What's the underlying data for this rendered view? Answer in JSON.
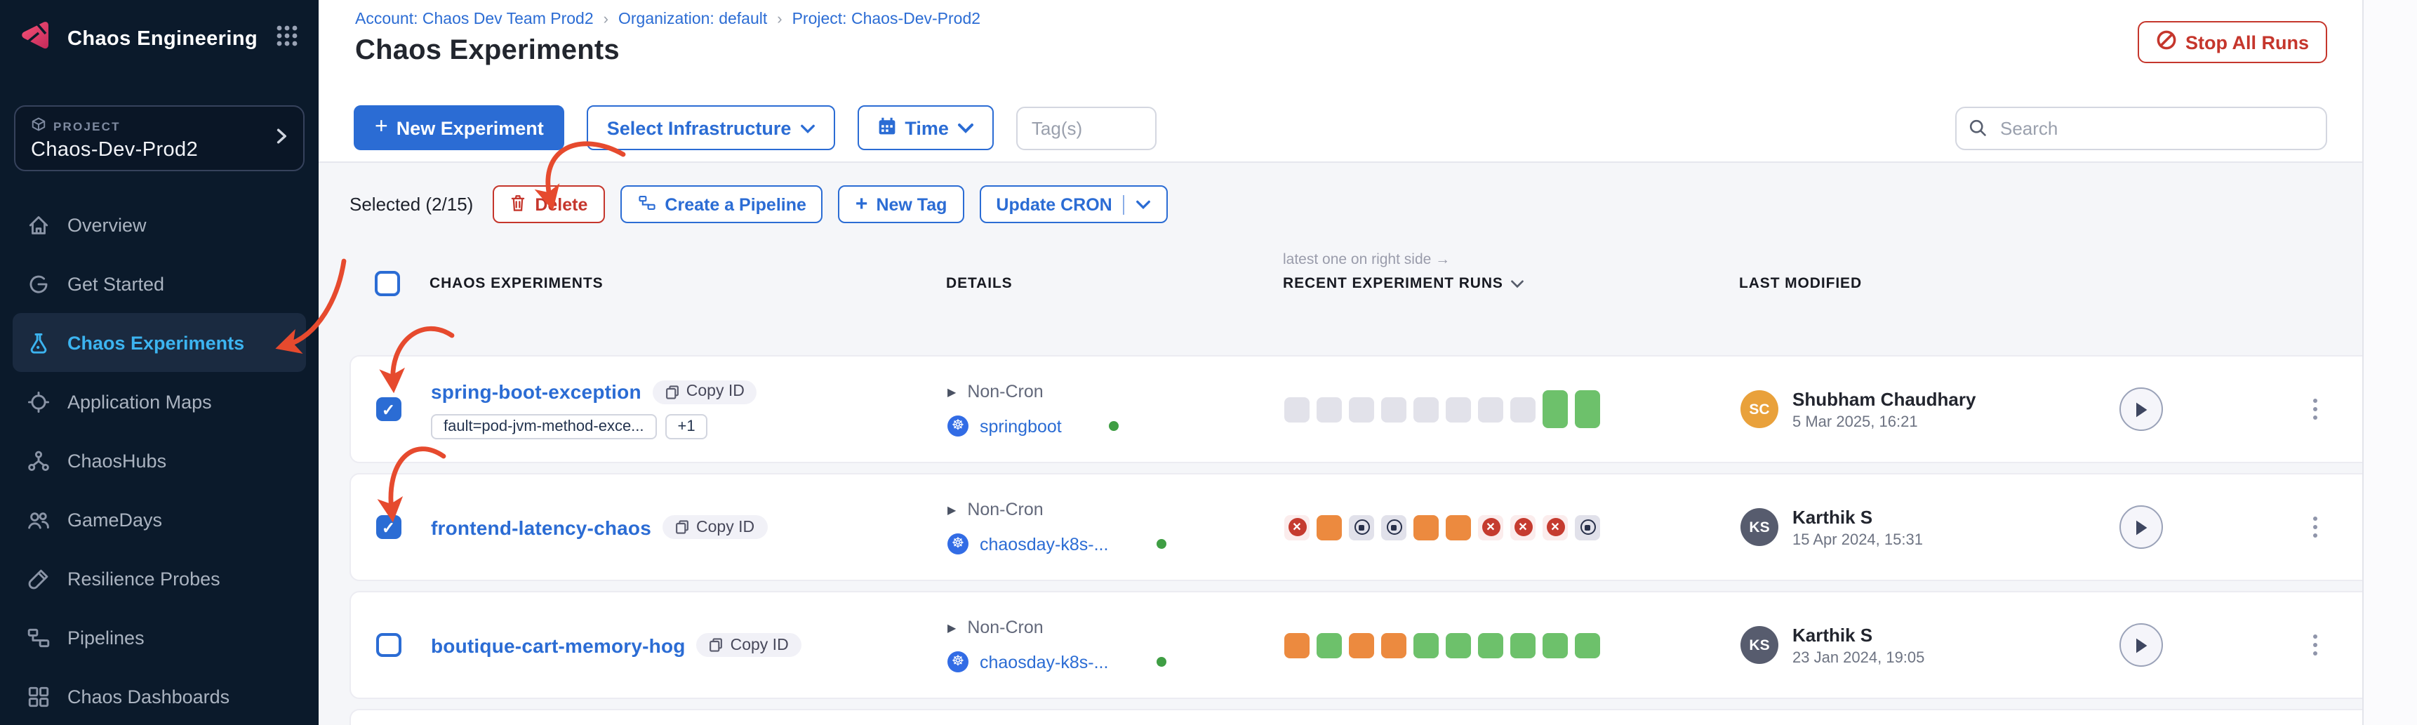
{
  "colors": {
    "primary": "#2b6cd4",
    "danger": "#c5362c",
    "brand_pink": "#ec1e5e",
    "nav_active": "#3cb4f0",
    "annotation_arrow": "#e64a2e",
    "run_green": "#6dc16b",
    "run_orange": "#ec8a3f",
    "run_gray": "#e2e2ea",
    "run_failed": "#c53b2f",
    "k8s_blue": "#326ce5",
    "status_green": "#3f9e44",
    "avatar_sc": "#e9a13b",
    "avatar_ks": "#575c6e"
  },
  "icons": {
    "plus": "+",
    "caret": "▶",
    "k8s_wheel": "☸",
    "fail_x": "✕",
    "check": "✓",
    "crumb_sep": "›"
  },
  "sidebar": {
    "brand": "Chaos Engineering",
    "project": {
      "label": "PROJECT",
      "name": "Chaos-Dev-Prod2"
    },
    "items": [
      {
        "label": "Overview",
        "icon": "home",
        "active": false
      },
      {
        "label": "Get Started",
        "icon": "getstarted",
        "active": false
      },
      {
        "label": "Chaos Experiments",
        "icon": "flask",
        "active": true
      },
      {
        "label": "Application Maps",
        "icon": "target",
        "active": false
      },
      {
        "label": "ChaosHubs",
        "icon": "hub",
        "active": false
      },
      {
        "label": "GameDays",
        "icon": "users",
        "active": false
      },
      {
        "label": "Resilience Probes",
        "icon": "tube",
        "active": false
      },
      {
        "label": "Pipelines",
        "icon": "pipeline",
        "active": false
      },
      {
        "label": "Chaos Dashboards",
        "icon": "dashgrid",
        "active": false
      }
    ]
  },
  "breadcrumb": {
    "items": [
      "Account: Chaos Dev Team Prod2",
      "Organization: default",
      "Project: Chaos-Dev-Prod2"
    ]
  },
  "page": {
    "title": "Chaos Experiments",
    "stop_all_label": "Stop All Runs"
  },
  "toolbar": {
    "new_experiment": "New Experiment",
    "select_infrastructure": "Select Infrastructure",
    "time": "Time",
    "tags_placeholder": "Tag(s)",
    "search_placeholder": "Search"
  },
  "selection": {
    "label": "Selected (2/15)",
    "delete_label": "Delete",
    "create_pipeline_label": "Create a Pipeline",
    "new_tag_label": "New Tag",
    "update_cron_label": "Update CRON"
  },
  "table": {
    "headers": {
      "experiments": "CHAOS EXPERIMENTS",
      "details": "DETAILS",
      "runs": "RECENT EXPERIMENT RUNS",
      "modified": "LAST MODIFIED"
    },
    "runs_hint": "latest one on right side →"
  },
  "rows": [
    {
      "name": "spring-boot-exception",
      "checked": true,
      "copy_label": "Copy ID",
      "tags": [
        "fault=pod-jvm-method-exce...",
        "+1"
      ],
      "schedule": "Non-Cron",
      "infra": "springboot",
      "infra_status": "connected",
      "runs": [
        "gray",
        "gray",
        "gray",
        "gray",
        "gray",
        "gray",
        "gray",
        "gray",
        "green-tall",
        "green-tall"
      ],
      "modified": {
        "initials": "SC",
        "avatar_color": "#e9a13b",
        "name": "Shubham Chaudhary",
        "date": "5 Mar 2025, 16:21"
      }
    },
    {
      "name": "frontend-latency-chaos",
      "checked": true,
      "copy_label": "Copy ID",
      "tags": [],
      "schedule": "Non-Cron",
      "infra": "chaosday-k8s-...",
      "infra_status": "connected",
      "runs": [
        "failed",
        "orange",
        "stopped",
        "stopped",
        "orange",
        "orange",
        "failed",
        "failed",
        "failed",
        "stopped"
      ],
      "modified": {
        "initials": "KS",
        "avatar_color": "#575c6e",
        "name": "Karthik S",
        "date": "15 Apr 2024, 15:31"
      }
    },
    {
      "name": "boutique-cart-memory-hog",
      "checked": false,
      "copy_label": "Copy ID",
      "tags": [],
      "schedule": "Non-Cron",
      "infra": "chaosday-k8s-...",
      "infra_status": "connected",
      "runs": [
        "orange",
        "green",
        "orange",
        "orange",
        "green",
        "green",
        "green",
        "green",
        "green",
        "green"
      ],
      "modified": {
        "initials": "KS",
        "avatar_color": "#575c6e",
        "name": "Karthik S",
        "date": "23 Jan 2024, 19:05"
      }
    }
  ]
}
